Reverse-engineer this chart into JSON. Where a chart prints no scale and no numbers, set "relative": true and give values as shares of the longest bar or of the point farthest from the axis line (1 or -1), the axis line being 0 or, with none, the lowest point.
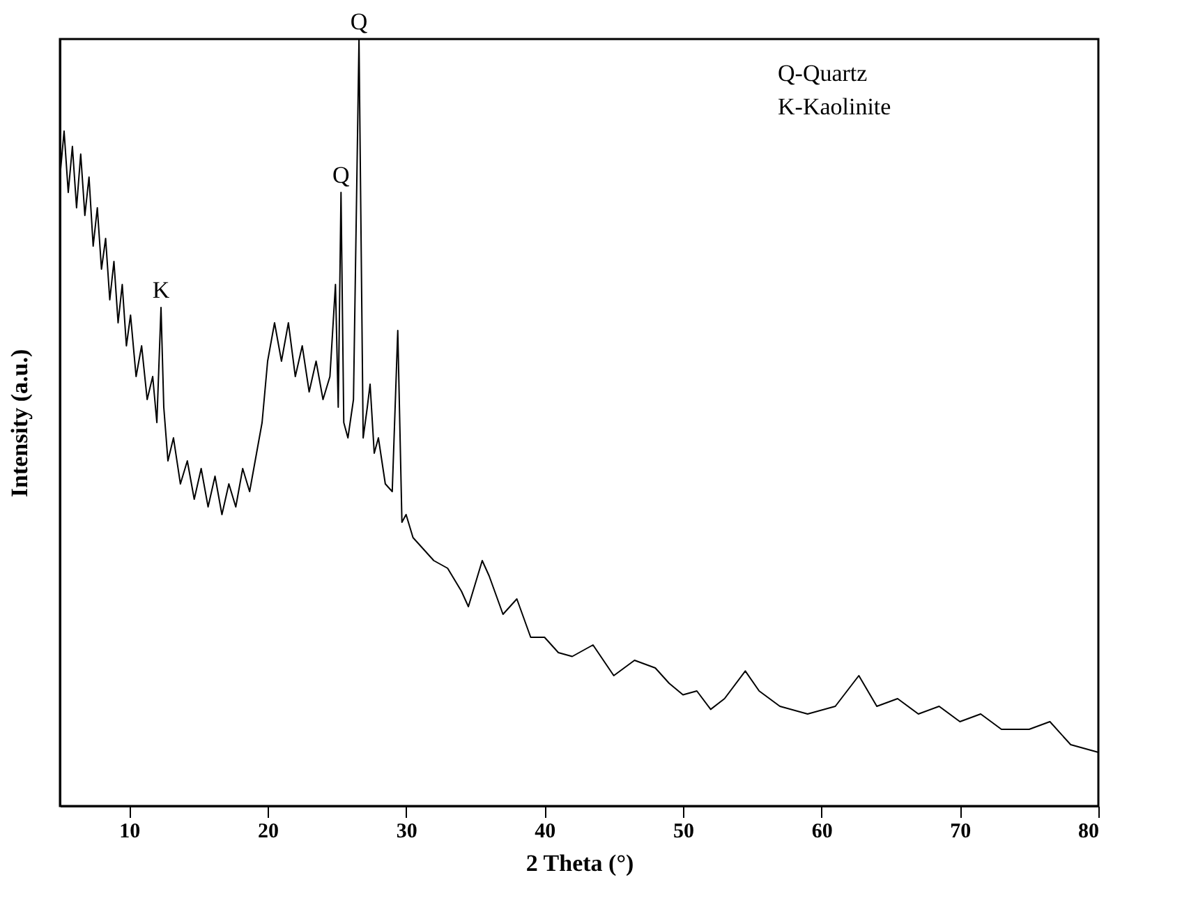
{
  "chart_data": {
    "type": "line",
    "xlabel": "2 Theta (°)",
    "ylabel": "Intensity (a.u.)",
    "relative": true,
    "x": [
      5,
      5.3,
      5.6,
      5.9,
      6.2,
      6.5,
      6.8,
      7.1,
      7.4,
      7.7,
      8,
      8.3,
      8.6,
      8.9,
      9.2,
      9.5,
      9.8,
      10.1,
      10.5,
      10.9,
      11.3,
      11.7,
      12.0,
      12.3,
      12.5,
      12.8,
      13.2,
      13.7,
      14.2,
      14.7,
      15.2,
      15.7,
      16.2,
      16.7,
      17.2,
      17.7,
      18.2,
      18.7,
      19.2,
      19.6,
      20.0,
      20.5,
      21.0,
      21.5,
      22.0,
      22.5,
      23.0,
      23.5,
      24.0,
      24.5,
      24.9,
      25.1,
      25.3,
      25.5,
      25.8,
      26.2,
      26.6,
      26.9,
      27.2,
      27.4,
      27.7,
      28.0,
      28.5,
      29.0,
      29.4,
      29.7,
      30.0,
      30.5,
      31.0,
      32.0,
      33.0,
      34.0,
      34.5,
      35.5,
      36.0,
      37.0,
      38.0,
      39.0,
      40.0,
      41.0,
      42.0,
      43.5,
      45.0,
      46.5,
      48.0,
      49.0,
      50.0,
      51.0,
      52.0,
      53.0,
      54.5,
      55.5,
      57.0,
      59.0,
      61.0,
      62.7,
      64.0,
      65.5,
      67.0,
      68.5,
      70.0,
      71.5,
      73.0,
      75.0,
      76.5,
      78.0,
      80.0
    ],
    "values": [
      0.82,
      0.88,
      0.8,
      0.86,
      0.78,
      0.85,
      0.77,
      0.82,
      0.73,
      0.78,
      0.7,
      0.74,
      0.66,
      0.71,
      0.63,
      0.68,
      0.6,
      0.64,
      0.56,
      0.6,
      0.53,
      0.56,
      0.5,
      0.65,
      0.52,
      0.45,
      0.48,
      0.42,
      0.45,
      0.4,
      0.44,
      0.39,
      0.43,
      0.38,
      0.42,
      0.39,
      0.44,
      0.41,
      0.46,
      0.5,
      0.58,
      0.63,
      0.58,
      0.63,
      0.56,
      0.6,
      0.54,
      0.58,
      0.53,
      0.56,
      0.68,
      0.52,
      0.8,
      0.5,
      0.48,
      0.53,
      1.0,
      0.48,
      0.52,
      0.55,
      0.46,
      0.48,
      0.42,
      0.41,
      0.62,
      0.37,
      0.38,
      0.35,
      0.34,
      0.32,
      0.31,
      0.28,
      0.26,
      0.32,
      0.3,
      0.25,
      0.27,
      0.22,
      0.22,
      0.2,
      0.195,
      0.21,
      0.17,
      0.19,
      0.18,
      0.16,
      0.145,
      0.15,
      0.126,
      0.14,
      0.176,
      0.15,
      0.13,
      0.12,
      0.13,
      0.17,
      0.13,
      0.14,
      0.12,
      0.13,
      0.11,
      0.12,
      0.1,
      0.1,
      0.11,
      0.08,
      0.07
    ],
    "color": "#000000",
    "xlim": [
      5,
      80
    ],
    "xticks": [
      10,
      20,
      30,
      40,
      50,
      60,
      70,
      80
    ],
    "annotations": [
      {
        "text": "K",
        "x": 12.3,
        "y": 0.65
      },
      {
        "text": "Q",
        "x": 25.3,
        "y": 0.8
      },
      {
        "text": "Q",
        "x": 26.6,
        "y": 1.0
      },
      "Q-Quartz",
      "K-Kaolinite"
    ],
    "grid": false,
    "marker": "none",
    "line_style": "solid"
  }
}
